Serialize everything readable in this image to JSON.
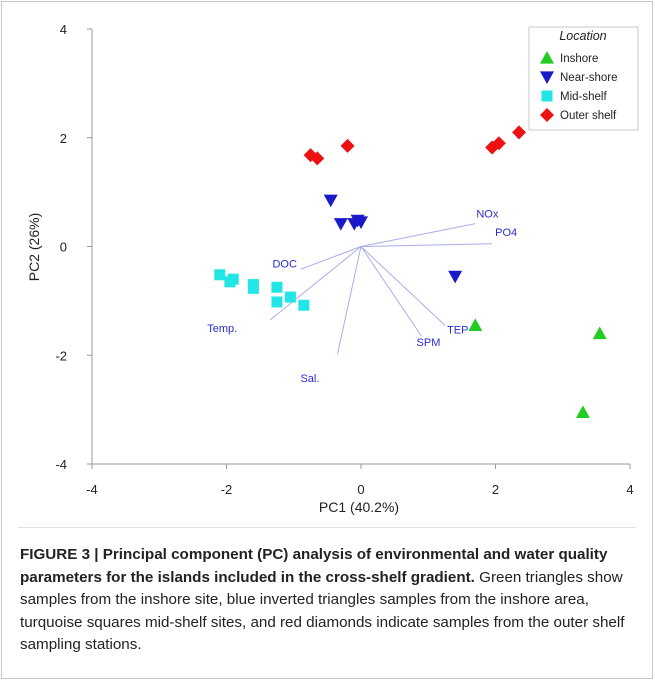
{
  "chart_data": {
    "type": "scatter",
    "xlabel": "PC1 (40.2%)",
    "ylabel": "PC2 (26%)",
    "xlim": [
      -4,
      4
    ],
    "ylim": [
      -4,
      4
    ],
    "xticks": [
      "-4",
      "-2",
      "0",
      "2",
      "4"
    ],
    "yticks": [
      "4",
      "2",
      "0",
      "-2",
      "-4"
    ],
    "grid": false,
    "legend": {
      "title": "Location",
      "placement": "top-right",
      "entries": [
        "Inshore",
        "Near-shore",
        "Mid-shelf",
        "Outer shelf"
      ]
    },
    "series": [
      {
        "name": "Inshore",
        "marker": "triangle",
        "color": "#22cc22",
        "points": [
          [
            1.7,
            -1.45
          ],
          [
            3.55,
            -1.6
          ],
          [
            3.3,
            -3.05
          ]
        ]
      },
      {
        "name": "Near-shore",
        "marker": "triangle-down",
        "color": "#1a1ac8",
        "points": [
          [
            -0.45,
            0.85
          ],
          [
            -0.3,
            0.42
          ],
          [
            -0.1,
            0.42
          ],
          [
            0.0,
            0.45
          ],
          [
            -0.05,
            0.48
          ],
          [
            1.4,
            -0.55
          ]
        ]
      },
      {
        "name": "Mid-shelf",
        "marker": "square",
        "color": "#22e6e6",
        "points": [
          [
            -2.1,
            -0.52
          ],
          [
            -1.95,
            -0.65
          ],
          [
            -1.9,
            -0.6
          ],
          [
            -1.6,
            -0.7
          ],
          [
            -1.6,
            -0.77
          ],
          [
            -1.25,
            -0.75
          ],
          [
            -1.25,
            -1.02
          ],
          [
            -1.05,
            -0.93
          ],
          [
            -0.85,
            -1.08
          ]
        ]
      },
      {
        "name": "Outer shelf",
        "marker": "diamond",
        "color": "#ee1111",
        "points": [
          [
            -0.75,
            1.68
          ],
          [
            -0.65,
            1.62
          ],
          [
            -0.2,
            1.85
          ],
          [
            1.95,
            1.82
          ],
          [
            2.05,
            1.9
          ],
          [
            2.35,
            2.1
          ]
        ]
      }
    ],
    "vectors": [
      {
        "label": "NOx",
        "end": [
          1.7,
          0.42
        ]
      },
      {
        "label": "PO4",
        "end": [
          1.95,
          0.05
        ]
      },
      {
        "label": "DOC",
        "end": [
          -0.9,
          -0.42
        ]
      },
      {
        "label": "Temp.",
        "end": [
          -1.35,
          -1.35
        ]
      },
      {
        "label": "Sal.",
        "end": [
          -0.35,
          -1.98
        ]
      },
      {
        "label": "SPM",
        "end": [
          0.9,
          -1.65
        ]
      },
      {
        "label": "TEP",
        "end": [
          1.25,
          -1.45
        ]
      }
    ]
  },
  "caption": {
    "lead": "FIGURE 3 | Principal component (PC) analysis of environmental and water quality parameters for the islands included in the cross-shelf gradient.",
    "body": " Green triangles show samples from the inshore site, blue inverted triangles samples from the inshore area, turquoise squares mid-shelf sites, and red diamonds indicate samples from the outer shelf sampling stations."
  }
}
